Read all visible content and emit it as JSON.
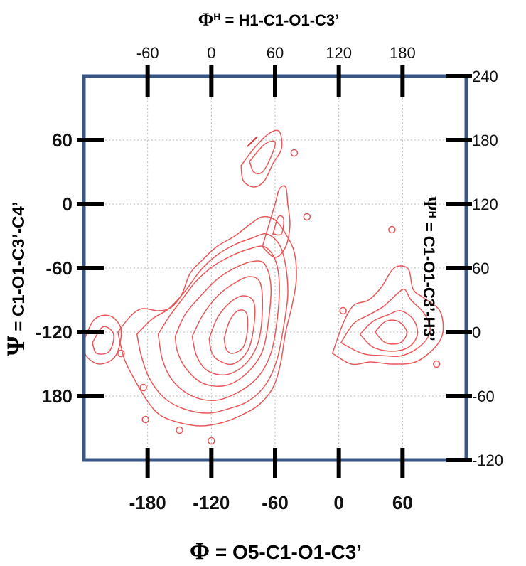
{
  "chart_data": {
    "type": "contour",
    "axes": {
      "bottom": {
        "symbol": "Φ",
        "label": " = O5-C1-O1-C3’",
        "ticks": [
          "-180",
          "-120",
          "-60",
          "0",
          "60"
        ],
        "tick_values": [
          -180,
          -120,
          -60,
          0,
          60
        ],
        "range": [
          -240,
          120
        ]
      },
      "top": {
        "symbol": "Φ",
        "symbol_sup": "H",
        "label": " = H1-C1-O1-C3’",
        "ticks": [
          "-60",
          "0",
          "60",
          "120",
          "180"
        ],
        "tick_values": [
          -60,
          0,
          60,
          120,
          180
        ],
        "range": [
          -120,
          240
        ]
      },
      "left": {
        "symbol": "Ψ",
        "label": " = C1-O1-C3’-C4’",
        "ticks": [
          "60",
          "0",
          "-60",
          "-120",
          "180"
        ],
        "tick_values": [
          60,
          0,
          -60,
          -120,
          -180
        ],
        "range": [
          -240,
          120
        ]
      },
      "right": {
        "symbol": "Ψ",
        "symbol_sup": "H",
        "label": " = C1-O1-C3’-H3’",
        "ticks": [
          "240",
          "180",
          "120",
          "60",
          "0",
          "-60",
          "-120"
        ],
        "tick_values": [
          240,
          180,
          120,
          60,
          0,
          -60,
          -120
        ],
        "range": [
          -120,
          240
        ]
      }
    },
    "grid": true,
    "contour_color": "#e8585a",
    "frame_color": "#3a5784",
    "regions": [
      {
        "name": "main-minimum",
        "levels": [
          [
            [
              -208,
              -120
            ],
            [
              -196,
              -105
            ],
            [
              -185,
              -98
            ],
            [
              -170,
              -100
            ],
            [
              -158,
              -97
            ],
            [
              -148,
              -85
            ],
            [
              -140,
              -65
            ],
            [
              -128,
              -52
            ],
            [
              -115,
              -40
            ],
            [
              -98,
              -30
            ],
            [
              -85,
              -20
            ],
            [
              -72,
              -12
            ],
            [
              -60,
              -15
            ],
            [
              -50,
              -28
            ],
            [
              -42,
              -45
            ],
            [
              -40,
              -70
            ],
            [
              -44,
              -95
            ],
            [
              -50,
              -120
            ],
            [
              -55,
              -150
            ],
            [
              -62,
              -172
            ],
            [
              -75,
              -188
            ],
            [
              -92,
              -198
            ],
            [
              -110,
              -205
            ],
            [
              -130,
              -208
            ],
            [
              -150,
              -205
            ],
            [
              -168,
              -198
            ],
            [
              -180,
              -185
            ],
            [
              -192,
              -165
            ],
            [
              -202,
              -145
            ],
            [
              -208,
              -120
            ]
          ],
          [
            [
              -190,
              -122
            ],
            [
              -176,
              -108
            ],
            [
              -160,
              -98
            ],
            [
              -145,
              -82
            ],
            [
              -130,
              -62
            ],
            [
              -115,
              -48
            ],
            [
              -98,
              -38
            ],
            [
              -82,
              -32
            ],
            [
              -68,
              -28
            ],
            [
              -56,
              -38
            ],
            [
              -50,
              -58
            ],
            [
              -48,
              -85
            ],
            [
              -52,
              -115
            ],
            [
              -58,
              -145
            ],
            [
              -68,
              -168
            ],
            [
              -84,
              -184
            ],
            [
              -104,
              -192
            ],
            [
              -124,
              -196
            ],
            [
              -146,
              -192
            ],
            [
              -164,
              -182
            ],
            [
              -178,
              -164
            ],
            [
              -186,
              -142
            ],
            [
              -190,
              -122
            ]
          ],
          [
            [
              -170,
              -122
            ],
            [
              -160,
              -106
            ],
            [
              -148,
              -90
            ],
            [
              -134,
              -72
            ],
            [
              -118,
              -58
            ],
            [
              -100,
              -48
            ],
            [
              -84,
              -42
            ],
            [
              -70,
              -40
            ],
            [
              -60,
              -52
            ],
            [
              -56,
              -75
            ],
            [
              -58,
              -108
            ],
            [
              -64,
              -140
            ],
            [
              -76,
              -162
            ],
            [
              -94,
              -176
            ],
            [
              -116,
              -184
            ],
            [
              -138,
              -180
            ],
            [
              -156,
              -166
            ],
            [
              -166,
              -146
            ],
            [
              -170,
              -122
            ]
          ],
          [
            [
              -154,
              -124
            ],
            [
              -145,
              -104
            ],
            [
              -130,
              -86
            ],
            [
              -114,
              -70
            ],
            [
              -98,
              -60
            ],
            [
              -82,
              -54
            ],
            [
              -70,
              -56
            ],
            [
              -64,
              -76
            ],
            [
              -66,
              -108
            ],
            [
              -72,
              -138
            ],
            [
              -86,
              -158
            ],
            [
              -106,
              -170
            ],
            [
              -128,
              -168
            ],
            [
              -144,
              -154
            ],
            [
              -152,
              -138
            ],
            [
              -154,
              -124
            ]
          ],
          [
            [
              -138,
              -124
            ],
            [
              -128,
              -104
            ],
            [
              -114,
              -86
            ],
            [
              -98,
              -74
            ],
            [
              -84,
              -68
            ],
            [
              -74,
              -74
            ],
            [
              -72,
              -100
            ],
            [
              -76,
              -130
            ],
            [
              -88,
              -150
            ],
            [
              -106,
              -160
            ],
            [
              -124,
              -156
            ],
            [
              -134,
              -142
            ],
            [
              -138,
              -124
            ]
          ],
          [
            [
              -122,
              -126
            ],
            [
              -114,
              -106
            ],
            [
              -102,
              -92
            ],
            [
              -90,
              -86
            ],
            [
              -80,
              -92
            ],
            [
              -80,
              -115
            ],
            [
              -86,
              -138
            ],
            [
              -100,
              -150
            ],
            [
              -114,
              -146
            ],
            [
              -120,
              -138
            ],
            [
              -122,
              -126
            ]
          ],
          [
            [
              -108,
              -126
            ],
            [
              -103,
              -110
            ],
            [
              -95,
              -100
            ],
            [
              -87,
              -102
            ],
            [
              -86,
              -118
            ],
            [
              -90,
              -134
            ],
            [
              -100,
              -140
            ],
            [
              -106,
              -136
            ],
            [
              -108,
              -126
            ]
          ]
        ]
      },
      {
        "name": "secondary-minimum",
        "levels": [
          [
            [
              -6,
              -140
            ],
            [
              4,
              -112
            ],
            [
              14,
              -95
            ],
            [
              28,
              -90
            ],
            [
              40,
              -78
            ],
            [
              50,
              -62
            ],
            [
              58,
              -58
            ],
            [
              66,
              -62
            ],
            [
              70,
              -80
            ],
            [
              80,
              -88
            ],
            [
              95,
              -100
            ],
            [
              98,
              -120
            ],
            [
              90,
              -135
            ],
            [
              72,
              -148
            ],
            [
              50,
              -150
            ],
            [
              30,
              -148
            ],
            [
              12,
              -150
            ],
            [
              -6,
              -140
            ]
          ],
          [
            [
              2,
              -130
            ],
            [
              14,
              -112
            ],
            [
              28,
              -104
            ],
            [
              42,
              -96
            ],
            [
              55,
              -84
            ],
            [
              62,
              -80
            ],
            [
              68,
              -90
            ],
            [
              80,
              -102
            ],
            [
              86,
              -118
            ],
            [
              78,
              -132
            ],
            [
              60,
              -142
            ],
            [
              40,
              -142
            ],
            [
              22,
              -140
            ],
            [
              2,
              -130
            ]
          ],
          [
            [
              20,
              -122
            ],
            [
              32,
              -110
            ],
            [
              46,
              -104
            ],
            [
              58,
              -100
            ],
            [
              70,
              -108
            ],
            [
              74,
              -122
            ],
            [
              66,
              -134
            ],
            [
              50,
              -138
            ],
            [
              32,
              -134
            ],
            [
              20,
              -122
            ]
          ],
          [
            [
              34,
              -120
            ],
            [
              44,
              -110
            ],
            [
              56,
              -110
            ],
            [
              64,
              -120
            ],
            [
              58,
              -130
            ],
            [
              44,
              -130
            ],
            [
              34,
              -120
            ]
          ]
        ]
      },
      {
        "name": "upper-island",
        "levels": [
          [
            [
              -92,
              36
            ],
            [
              -80,
              52
            ],
            [
              -66,
              66
            ],
            [
              -56,
              68
            ],
            [
              -54,
              52
            ],
            [
              -62,
              38
            ],
            [
              -70,
              22
            ],
            [
              -80,
              16
            ],
            [
              -90,
              22
            ],
            [
              -92,
              36
            ]
          ],
          [
            [
              -84,
              40
            ],
            [
              -70,
              56
            ],
            [
              -60,
              58
            ],
            [
              -64,
              44
            ],
            [
              -72,
              30
            ],
            [
              -80,
              30
            ],
            [
              -84,
              40
            ]
          ]
        ]
      },
      {
        "name": "middle-ridge",
        "levels": [
          [
            [
              -72,
              -40
            ],
            [
              -66,
              -20
            ],
            [
              -60,
              0
            ],
            [
              -56,
              14
            ],
            [
              -50,
              16
            ],
            [
              -48,
              0
            ],
            [
              -46,
              -20
            ],
            [
              -50,
              -40
            ],
            [
              -60,
              -50
            ],
            [
              -72,
              -40
            ]
          ],
          [
            [
              -62,
              -28
            ],
            [
              -57,
              -12
            ],
            [
              -52,
              -14
            ],
            [
              -54,
              -28
            ],
            [
              -62,
              -28
            ]
          ]
        ]
      },
      {
        "name": "left-lobe",
        "levels": [
          [
            [
              -240,
              -128
            ],
            [
              -230,
              -108
            ],
            [
              -215,
              -105
            ],
            [
              -205,
              -118
            ],
            [
              -210,
              -142
            ],
            [
              -225,
              -150
            ],
            [
              -238,
              -142
            ],
            [
              -240,
              -128
            ]
          ],
          [
            [
              -232,
              -130
            ],
            [
              -222,
              -115
            ],
            [
              -212,
              -122
            ],
            [
              -216,
              -138
            ],
            [
              -228,
              -140
            ],
            [
              -232,
              -130
            ]
          ]
        ]
      }
    ],
    "small_circles": [
      [
        -184,
        -172
      ],
      [
        -30,
        -12
      ],
      [
        -42,
        48
      ],
      [
        50,
        -24
      ],
      [
        -182,
        -202
      ],
      [
        -150,
        -212
      ],
      [
        -120,
        -222
      ],
      [
        92,
        -150
      ],
      [
        -205,
        -140
      ],
      [
        4,
        -100
      ]
    ],
    "cross_marks": [
      [
        -80,
        60
      ]
    ]
  }
}
